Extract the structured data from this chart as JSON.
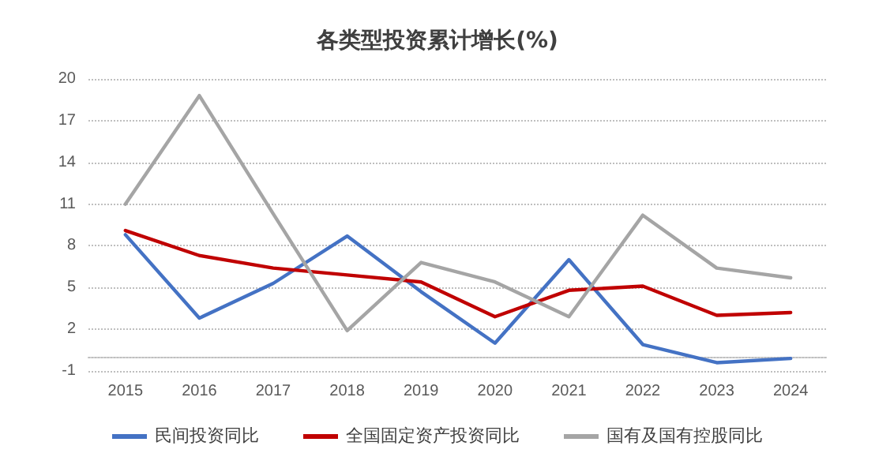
{
  "chart_data": {
    "type": "line",
    "title": "各类型投资累计增长(%)",
    "categories": [
      "2015",
      "2016",
      "2017",
      "2018",
      "2019",
      "2020",
      "2021",
      "2022",
      "2023",
      "2024"
    ],
    "series": [
      {
        "name": "民间投资同比",
        "color": "#4472c4",
        "values": [
          8.8,
          2.8,
          5.3,
          8.7,
          4.7,
          1.0,
          7.0,
          0.9,
          -0.4,
          -0.1
        ]
      },
      {
        "name": "全国固定资产投资同比",
        "color": "#c00000",
        "values": [
          9.1,
          7.3,
          6.4,
          5.9,
          5.4,
          2.9,
          4.8,
          5.1,
          3.0,
          3.2
        ]
      },
      {
        "name": "国有及国有控股同比",
        "color": "#a5a5a5",
        "values": [
          11.0,
          18.8,
          10.3,
          1.9,
          6.8,
          5.4,
          2.9,
          10.2,
          6.4,
          5.7
        ]
      }
    ],
    "ylim": [
      -1,
      20
    ],
    "yticks": [
      -1,
      2,
      5,
      8,
      11,
      14,
      17,
      20
    ],
    "grid": "y",
    "legend": "bottom",
    "marker": "none",
    "line_style": "solid"
  }
}
